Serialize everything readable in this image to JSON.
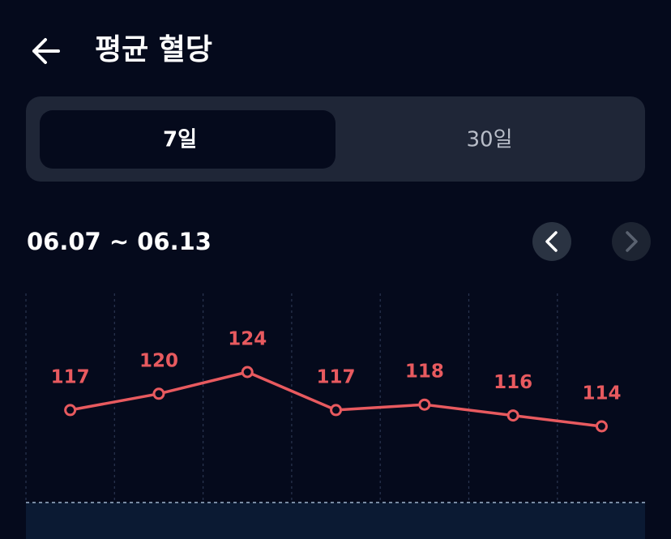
{
  "header": {
    "title": "평균 혈당"
  },
  "tabs": [
    "7일",
    "30일"
  ],
  "date_range": "06.07 ~ 06.13",
  "chart_data": {
    "type": "line",
    "values": [
      117,
      120,
      124,
      117,
      118,
      116,
      114
    ],
    "color": "#e85a5f"
  }
}
